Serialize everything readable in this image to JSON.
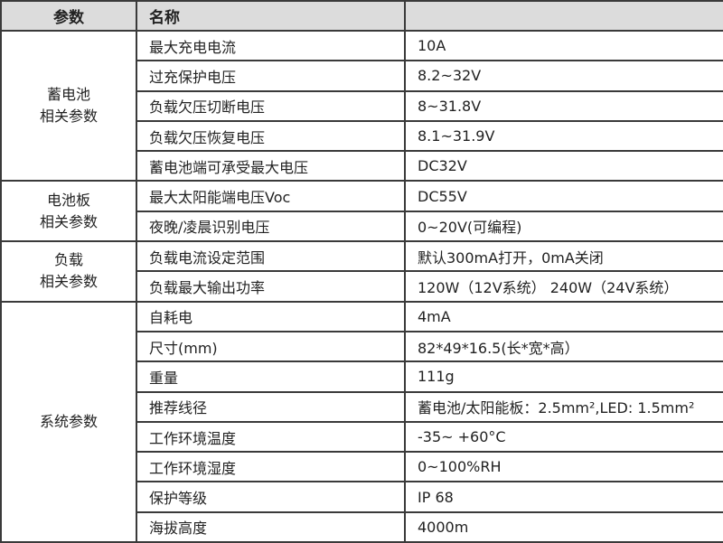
{
  "header": {
    "col1": "参数",
    "col2": "名称",
    "col3": ""
  },
  "groups": [
    {
      "label_lines": [
        "蓄电池",
        "相关参数"
      ],
      "rows": [
        {
          "name": "最大充电电流",
          "value": "10A"
        },
        {
          "name": "过充保护电压",
          "value": "8.2~32V"
        },
        {
          "name": "负载欠压切断电压",
          "value": "8~31.8V"
        },
        {
          "name": "负载欠压恢复电压",
          "value": "8.1~31.9V"
        },
        {
          "name": "蓄电池端可承受最大电压",
          "value": "DC32V"
        }
      ]
    },
    {
      "label_lines": [
        "电池板",
        "相关参数"
      ],
      "rows": [
        {
          "name": "最大太阳能端电压Voc",
          "value": "DC55V"
        },
        {
          "name": "夜晚/凌晨识别电压",
          "value": "0~20V(可编程)"
        }
      ]
    },
    {
      "label_lines": [
        "负载",
        "相关参数"
      ],
      "rows": [
        {
          "name": "负载电流设定范围",
          "value": "默认300mA打开，0mA关闭"
        },
        {
          "name": "负载最大输出功率",
          "value": "120W（12V系统） 240W（24V系统）"
        }
      ]
    },
    {
      "label_lines": [
        "系统参数"
      ],
      "rows": [
        {
          "name": "自耗电",
          "value": "4mA"
        },
        {
          "name": "尺寸(mm)",
          "value": "82*49*16.5(长*宽*高）"
        },
        {
          "name": "重量",
          "value": "111g"
        },
        {
          "name": "推荐线径",
          "value": "蓄电池/太阳能板：2.5mm²,LED: 1.5mm²"
        },
        {
          "name": "工作环境温度",
          "value": "-35~ +60°C"
        },
        {
          "name": "工作环境湿度",
          "value": "0~100%RH"
        },
        {
          "name": "保护等级",
          "value": "IP 68"
        },
        {
          "name": "海拔高度",
          "value": "4000m"
        }
      ]
    }
  ],
  "colors": {
    "header_bg": "#dcdcdc",
    "border": "#3a3a3a"
  }
}
